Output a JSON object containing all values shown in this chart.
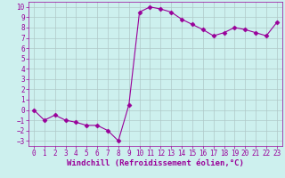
{
  "x": [
    0,
    1,
    2,
    3,
    4,
    5,
    6,
    7,
    8,
    9,
    10,
    11,
    12,
    13,
    14,
    15,
    16,
    17,
    18,
    19,
    20,
    21,
    22,
    23
  ],
  "y": [
    0,
    -1,
    -0.5,
    -1,
    -1.2,
    -1.5,
    -1.5,
    -2,
    -3,
    0.5,
    9.5,
    10,
    9.8,
    9.5,
    8.8,
    8.3,
    7.8,
    7.2,
    7.5,
    8.0,
    7.8,
    7.5,
    7.2,
    8.5
  ],
  "line_color": "#990099",
  "marker": "D",
  "marker_size": 2.5,
  "xlim": [
    -0.5,
    23.5
  ],
  "ylim": [
    -3.5,
    10.5
  ],
  "yticks": [
    -3,
    -2,
    -1,
    0,
    1,
    2,
    3,
    4,
    5,
    6,
    7,
    8,
    9,
    10
  ],
  "xticks": [
    0,
    1,
    2,
    3,
    4,
    5,
    6,
    7,
    8,
    9,
    10,
    11,
    12,
    13,
    14,
    15,
    16,
    17,
    18,
    19,
    20,
    21,
    22,
    23
  ],
  "xlabel": "Windchill (Refroidissement éolien,°C)",
  "background_color": "#cdf0ee",
  "grid_color": "#b0c8c8",
  "tick_fontsize": 5.5,
  "label_fontsize": 6.5
}
